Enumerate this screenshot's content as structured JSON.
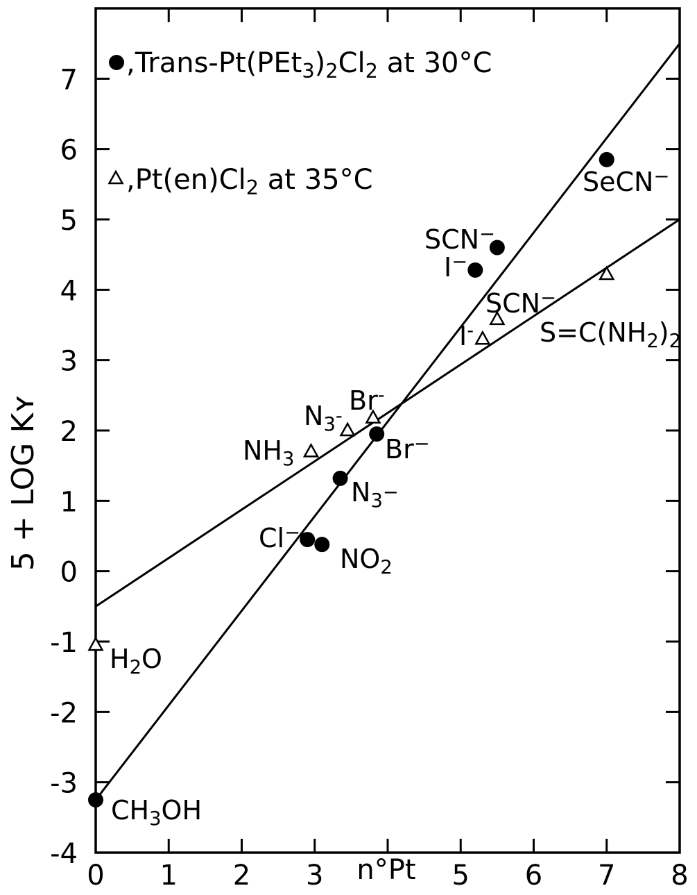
{
  "chart_data": {
    "type": "scatter",
    "title": "",
    "xlabel": "n°Pt",
    "ylabel": "5 + LOG Kʏ",
    "xlim": [
      0,
      8
    ],
    "ylim": [
      -4,
      8
    ],
    "x_ticks": [
      "0",
      "1",
      "2",
      "3",
      "",
      "5",
      "6",
      "7",
      "8"
    ],
    "y_ticks": [
      "-4",
      "-3",
      "-2",
      "-1",
      "0",
      "1",
      "2",
      "3",
      "4",
      "5",
      "6",
      "7"
    ],
    "legend_position": "top-left",
    "grid": false,
    "series": [
      {
        "name": "Trans-Pt(PEt3)2Cl2 at 30°C",
        "marker": "filled-circle",
        "points": [
          {
            "label": "CH3OH",
            "x": 0.0,
            "y": -3.25
          },
          {
            "label": "Cl⁻",
            "x": 2.9,
            "y": 0.45
          },
          {
            "label": "NO2",
            "x": 3.1,
            "y": 0.38
          },
          {
            "label": "N3⁻",
            "x": 3.35,
            "y": 1.32
          },
          {
            "label": "Br⁻",
            "x": 3.85,
            "y": 1.95
          },
          {
            "label": "I⁻",
            "x": 5.2,
            "y": 4.28
          },
          {
            "label": "SCN⁻",
            "x": 5.5,
            "y": 4.6
          },
          {
            "label": "SeCN⁻",
            "x": 7.0,
            "y": 5.85
          }
        ],
        "fit_line": {
          "x": [
            0,
            8
          ],
          "y": [
            -3.25,
            7.5
          ]
        }
      },
      {
        "name": "Pt(en)Cl2 at 35°C",
        "marker": "open-triangle",
        "points": [
          {
            "label": "H2O",
            "x": 0.0,
            "y": -1.05
          },
          {
            "label": "NH3",
            "x": 2.95,
            "y": 1.7
          },
          {
            "label": "N3⁻",
            "x": 3.45,
            "y": 2.0
          },
          {
            "label": "Br⁻",
            "x": 3.8,
            "y": 2.18
          },
          {
            "label": "I⁻",
            "x": 5.3,
            "y": 3.3
          },
          {
            "label": "SCN⁻",
            "x": 5.5,
            "y": 3.58
          },
          {
            "label": "S=C(NH2)2",
            "x": 7.0,
            "y": 4.22
          }
        ],
        "fit_line": {
          "x": [
            0,
            8
          ],
          "y": [
            -0.5,
            5.0
          ]
        }
      }
    ],
    "legend": [
      {
        "marker": "filled-circle",
        "text": ",Trans-Pt(PEt",
        "sub1": "3",
        "mid": ")",
        "sub2": "2",
        "mid2": "Cl",
        "sub3": "2",
        "tail": " at 30°C"
      },
      {
        "marker": "open-triangle",
        "text": ",Pt(en)Cl",
        "sub1": "2",
        "tail": " at 35°C"
      }
    ]
  }
}
